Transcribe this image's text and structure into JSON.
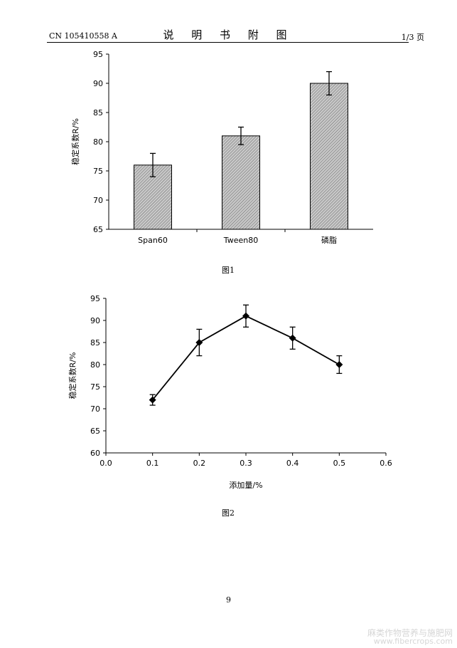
{
  "header": {
    "patent_no": "CN 105410558 A",
    "title": "说 明 书 附 图",
    "page": "1/3 页"
  },
  "figures": {
    "fig1_caption": "图1",
    "fig2_caption": "图2"
  },
  "footer": {
    "page_number": "9",
    "watermark_cn": "麻类作物营养与施肥网",
    "watermark_url": "www.fibercrops.com"
  },
  "colors": {
    "bar_fill": "#c8c8c8",
    "line": "#000000"
  },
  "chart_data": [
    {
      "type": "bar",
      "title": "",
      "xlabel": "",
      "ylabel": "稳定系数R/%",
      "categories": [
        "Span60",
        "Tween80",
        "磷脂"
      ],
      "values": [
        76,
        81,
        90
      ],
      "errors": [
        2,
        1.5,
        2
      ],
      "ylim": [
        65,
        95
      ],
      "yticks": [
        65,
        70,
        75,
        80,
        85,
        90,
        95
      ],
      "grid": false,
      "legend": "none"
    },
    {
      "type": "line",
      "title": "",
      "xlabel": "添加量/%",
      "ylabel": "稳定系数R/%",
      "x": [
        0.1,
        0.2,
        0.3,
        0.4,
        0.5
      ],
      "y": [
        72,
        85,
        91,
        86,
        80
      ],
      "errors": [
        1.2,
        3,
        2.5,
        2.5,
        2
      ],
      "xlim": [
        0.0,
        0.6
      ],
      "ylim": [
        60,
        95
      ],
      "xticks": [
        "0.0",
        "0.1",
        "0.2",
        "0.3",
        "0.4",
        "0.5",
        "0.6"
      ],
      "yticks": [
        60,
        65,
        70,
        75,
        80,
        85,
        90,
        95
      ],
      "marker": "diamond",
      "grid": false,
      "legend": "none"
    }
  ]
}
